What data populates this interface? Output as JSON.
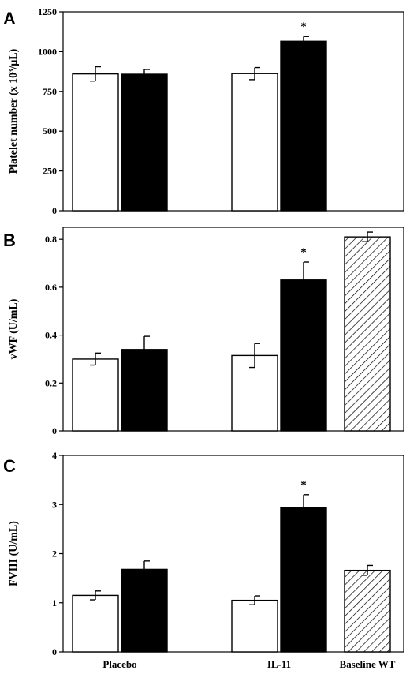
{
  "chart_data": [
    {
      "type": "bar",
      "panel": "A",
      "ylabel": "Platelet number (x 10³/µL)",
      "ylim": [
        0,
        1250
      ],
      "yticks": [
        0,
        250,
        500,
        750,
        1000,
        1250
      ],
      "grid": false,
      "bars": [
        {
          "group": "Placebo",
          "fill": "white",
          "value": 860,
          "error": 45
        },
        {
          "group": "Placebo",
          "fill": "black",
          "value": 858,
          "error": 30
        },
        {
          "group": "IL-11",
          "fill": "white",
          "value": 862,
          "error": 38
        },
        {
          "group": "IL-11",
          "fill": "black",
          "value": 1065,
          "error": 30,
          "annotation": "*"
        }
      ]
    },
    {
      "type": "bar",
      "panel": "B",
      "ylabel": "vWF (U/mL)",
      "ylim": [
        0,
        0.85
      ],
      "yticks": [
        0,
        0.2,
        0.4,
        0.6,
        0.8
      ],
      "grid": false,
      "bars": [
        {
          "group": "Placebo",
          "fill": "white",
          "value": 0.3,
          "error": 0.025
        },
        {
          "group": "Placebo",
          "fill": "black",
          "value": 0.34,
          "error": 0.055
        },
        {
          "group": "IL-11",
          "fill": "white",
          "value": 0.315,
          "error": 0.05
        },
        {
          "group": "IL-11",
          "fill": "black",
          "value": 0.63,
          "error": 0.075,
          "annotation": "*"
        },
        {
          "group": "Baseline WT",
          "fill": "hatched",
          "value": 0.81,
          "error": 0.02
        }
      ]
    },
    {
      "type": "bar",
      "panel": "C",
      "ylabel": "FVIII (U/mL)",
      "ylim": [
        0,
        4
      ],
      "yticks": [
        0,
        1,
        2,
        3,
        4
      ],
      "grid": false,
      "bars": [
        {
          "group": "Placebo",
          "fill": "white",
          "value": 1.15,
          "error": 0.09
        },
        {
          "group": "Placebo",
          "fill": "black",
          "value": 1.68,
          "error": 0.17
        },
        {
          "group": "IL-11",
          "fill": "white",
          "value": 1.05,
          "error": 0.09
        },
        {
          "group": "IL-11",
          "fill": "black",
          "value": 2.93,
          "error": 0.27,
          "annotation": "*"
        },
        {
          "group": "Baseline WT",
          "fill": "hatched",
          "value": 1.66,
          "error": 0.1
        }
      ]
    }
  ],
  "categories": [
    "Placebo",
    "IL-11",
    "Baseline WT"
  ],
  "colors": {
    "ink": "#000000",
    "open_bar": "#ffffff",
    "solid_bar": "#000000"
  }
}
